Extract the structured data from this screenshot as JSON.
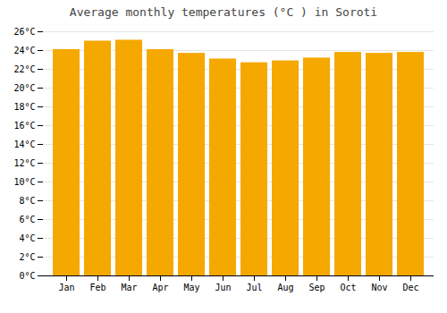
{
  "chart_data": {
    "type": "bar",
    "title": "Average monthly temperatures (°C ) in Soroti",
    "categories": [
      "Jan",
      "Feb",
      "Mar",
      "Apr",
      "May",
      "Jun",
      "Jul",
      "Aug",
      "Sep",
      "Oct",
      "Nov",
      "Dec"
    ],
    "values": [
      24.1,
      25.0,
      25.1,
      24.1,
      23.7,
      23.1,
      22.7,
      22.9,
      23.2,
      23.8,
      23.7,
      23.8
    ],
    "color": "#F5A800",
    "ylim": [
      0,
      26
    ],
    "yticks": [
      {
        "value": 0,
        "label": "0°C"
      },
      {
        "value": 2,
        "label": "2°C"
      },
      {
        "value": 4,
        "label": "4°C"
      },
      {
        "value": 6,
        "label": "6°C"
      },
      {
        "value": 8,
        "label": "8°C"
      },
      {
        "value": 10,
        "label": "10°C"
      },
      {
        "value": 12,
        "label": "12°C"
      },
      {
        "value": 14,
        "label": "14°C"
      },
      {
        "value": 16,
        "label": "16°C"
      },
      {
        "value": 18,
        "label": "18°C"
      },
      {
        "value": 20,
        "label": "20°C"
      },
      {
        "value": 22,
        "label": "22°C"
      },
      {
        "value": 24,
        "label": "24°C"
      },
      {
        "value": 26,
        "label": "26°C"
      }
    ],
    "grid": true
  }
}
